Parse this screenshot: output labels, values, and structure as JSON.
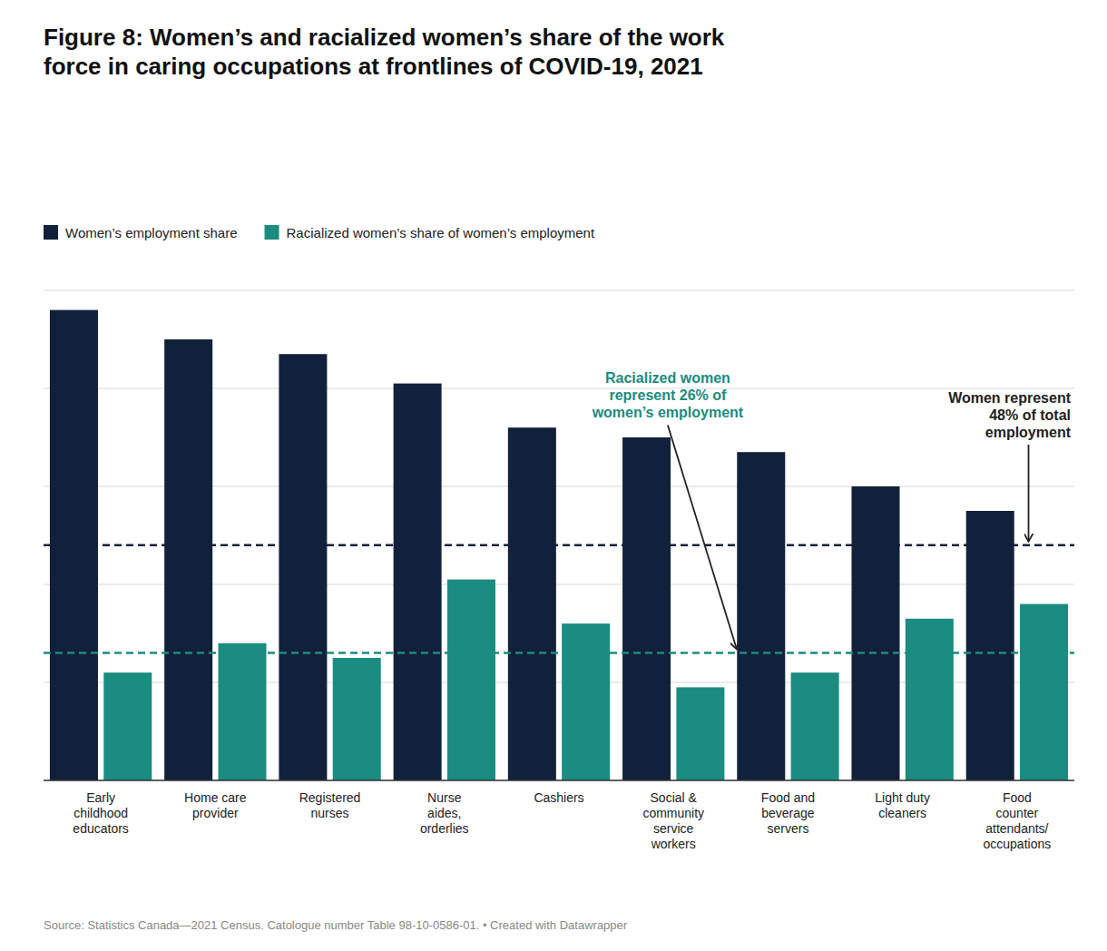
{
  "chart_data": {
    "type": "bar",
    "title": "Figure 8: Women’s and racialized women’s share of the work\nforce in caring occupations at frontlines of COVID-19, 2021",
    "categories": [
      "Early\nchildhood\neducators",
      "Home care\nprovider",
      "Registered\nnurses",
      "Nurse\naides,\norderlies",
      "Cashiers",
      "Social &\ncommunity\nservice\nworkers",
      "Food and\nbeverage\nservers",
      "Light duty\ncleaners",
      "Food\ncounter\nattendants/\noccupations"
    ],
    "series": [
      {
        "name": "Women’s employment share",
        "color": "#12213b",
        "values": [
          96,
          90,
          87,
          81,
          72,
          70,
          67,
          60,
          55
        ],
        "reference": 48,
        "annotation": "Women represent\n48% of total\nemployment"
      },
      {
        "name": "Racialized women’s share of women’s employment",
        "color": "#1a8c80",
        "values": [
          22,
          28,
          25,
          41,
          32,
          19,
          22,
          33,
          36
        ],
        "reference": 26,
        "annotation": "Racialized women\nrepresent 26% of\nwomen’s employment"
      }
    ],
    "ylim": [
      0,
      100
    ],
    "yticks": [
      0,
      20,
      40,
      60,
      80,
      100
    ],
    "grid": true,
    "tick_labels": "x",
    "legend": "upper left",
    "source": "Source: Statistics Canada—2021 Census. Catologue number Table 98-10-0586-01. • Created with Datawrapper"
  }
}
